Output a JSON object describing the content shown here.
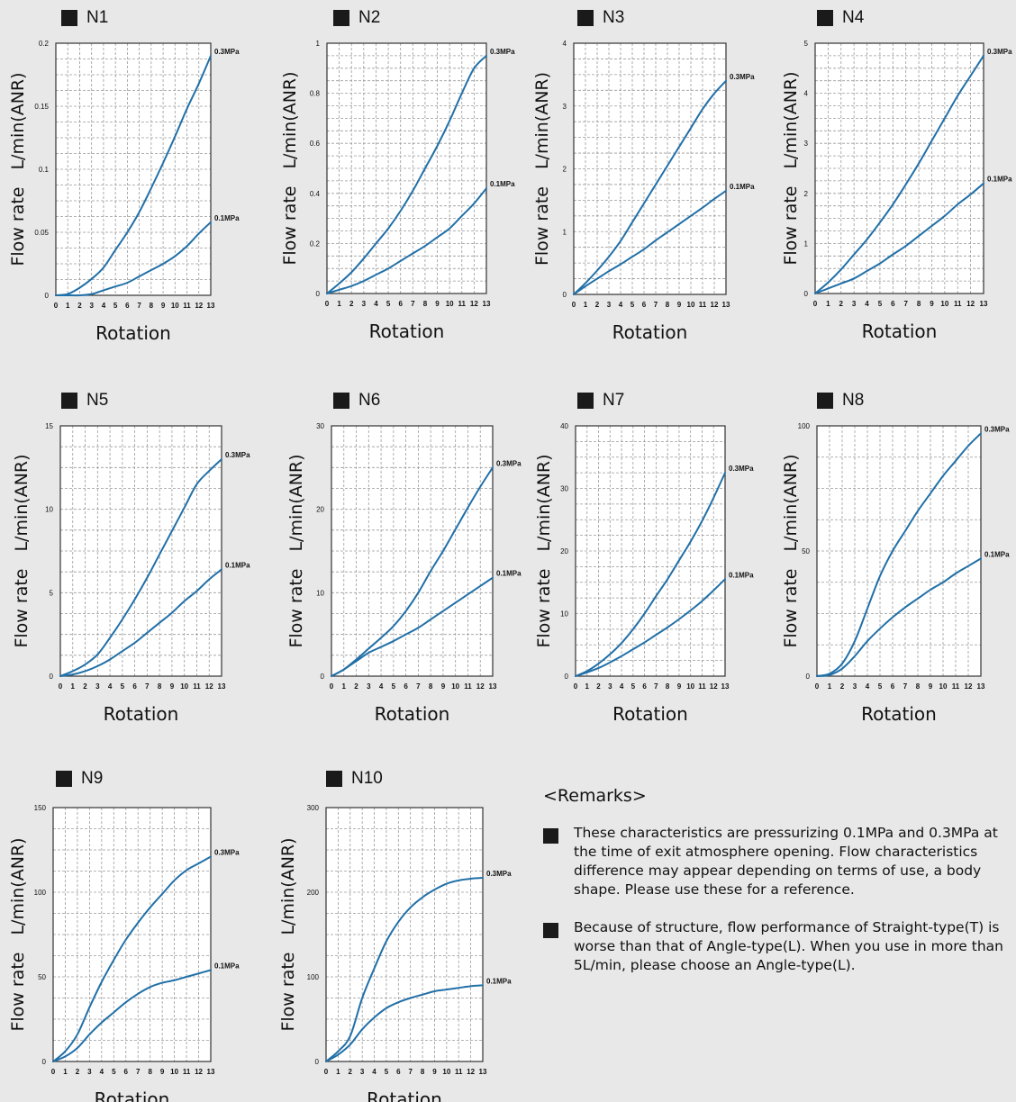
{
  "chart_data": [
    {
      "type": "line",
      "title": "N1",
      "xlabel": "Rotation",
      "ylabel": "Flow rate L/min(ANR)",
      "xlim": [
        0,
        13
      ],
      "ylim": [
        0,
        0.2
      ],
      "y_ticks": [
        0,
        0.05,
        0.1,
        0.15,
        0.2
      ],
      "y_tick_labels": [
        "0",
        "0.05",
        "0.1",
        "0.15",
        "0.2"
      ],
      "series": [
        {
          "name": "0.3MPa",
          "x": [
            0,
            1,
            2,
            3,
            4,
            5,
            6,
            7,
            8,
            9,
            10,
            11,
            12,
            13
          ],
          "y": [
            0,
            0.001,
            0.006,
            0.013,
            0.022,
            0.036,
            0.05,
            0.066,
            0.085,
            0.105,
            0.126,
            0.148,
            0.168,
            0.19
          ]
        },
        {
          "name": "0.1MPa",
          "x": [
            0,
            1,
            2,
            3,
            4,
            5,
            6,
            7,
            8,
            9,
            10,
            11,
            12,
            13
          ],
          "y": [
            0,
            0,
            0,
            0.001,
            0.004,
            0.007,
            0.01,
            0.015,
            0.02,
            0.025,
            0.031,
            0.039,
            0.049,
            0.058
          ]
        }
      ]
    },
    {
      "type": "line",
      "title": "N2",
      "xlabel": "Rotation",
      "ylabel": "Flow rate L/min(ANR)",
      "xlim": [
        0,
        13
      ],
      "ylim": [
        0,
        1
      ],
      "y_ticks": [
        0,
        0.2,
        0.4,
        0.6,
        0.8,
        1
      ],
      "y_tick_labels": [
        "0",
        "0.2",
        "0.4",
        "0.6",
        "0.8",
        "1"
      ],
      "series": [
        {
          "name": "0.3MPa",
          "x": [
            0,
            1,
            2,
            3,
            4,
            5,
            6,
            7,
            8,
            9,
            10,
            11,
            12,
            13
          ],
          "y": [
            0,
            0.04,
            0.085,
            0.14,
            0.2,
            0.26,
            0.33,
            0.41,
            0.5,
            0.59,
            0.69,
            0.8,
            0.9,
            0.95
          ]
        },
        {
          "name": "0.1MPa",
          "x": [
            0,
            1,
            2,
            3,
            4,
            5,
            6,
            7,
            8,
            9,
            10,
            11,
            12,
            13
          ],
          "y": [
            0,
            0.015,
            0.03,
            0.05,
            0.075,
            0.1,
            0.13,
            0.16,
            0.19,
            0.225,
            0.26,
            0.31,
            0.36,
            0.42
          ]
        }
      ]
    },
    {
      "type": "line",
      "title": "N3",
      "xlabel": "Rotation",
      "ylabel": "Flow rate L/min(ANR)",
      "xlim": [
        0,
        13
      ],
      "ylim": [
        0,
        4
      ],
      "y_ticks": [
        0,
        1,
        2,
        3,
        4
      ],
      "y_tick_labels": [
        "0",
        "1",
        "2",
        "3",
        "4"
      ],
      "series": [
        {
          "name": "0.3MPa",
          "x": [
            0,
            1,
            2,
            3,
            4,
            5,
            6,
            7,
            8,
            9,
            10,
            11,
            12,
            13
          ],
          "y": [
            0,
            0.18,
            0.38,
            0.6,
            0.85,
            1.15,
            1.45,
            1.75,
            2.05,
            2.35,
            2.65,
            2.95,
            3.2,
            3.4
          ]
        },
        {
          "name": "0.1MPa",
          "x": [
            0,
            1,
            2,
            3,
            4,
            5,
            6,
            7,
            8,
            9,
            10,
            11,
            12,
            13
          ],
          "y": [
            0,
            0.13,
            0.25,
            0.37,
            0.48,
            0.6,
            0.72,
            0.86,
            0.99,
            1.12,
            1.25,
            1.38,
            1.52,
            1.65
          ]
        }
      ]
    },
    {
      "type": "line",
      "title": "N4",
      "xlabel": "Rotation",
      "ylabel": "Flow rate L/min(ANR)",
      "xlim": [
        0,
        13
      ],
      "ylim": [
        0,
        5
      ],
      "y_ticks": [
        0,
        1,
        2,
        3,
        4,
        5
      ],
      "y_tick_labels": [
        "0",
        "1",
        "2",
        "3",
        "4",
        "5"
      ],
      "series": [
        {
          "name": "0.3MPa",
          "x": [
            0,
            1,
            2,
            3,
            4,
            5,
            6,
            7,
            8,
            9,
            10,
            11,
            12,
            13
          ],
          "y": [
            0,
            0.22,
            0.48,
            0.78,
            1.08,
            1.42,
            1.78,
            2.18,
            2.6,
            3.05,
            3.5,
            3.95,
            4.35,
            4.75
          ]
        },
        {
          "name": "0.1MPa",
          "x": [
            0,
            1,
            2,
            3,
            4,
            5,
            6,
            7,
            8,
            9,
            10,
            11,
            12,
            13
          ],
          "y": [
            0,
            0.1,
            0.2,
            0.3,
            0.45,
            0.6,
            0.78,
            0.95,
            1.15,
            1.35,
            1.55,
            1.78,
            1.98,
            2.2
          ]
        }
      ]
    },
    {
      "type": "line",
      "title": "N5",
      "xlabel": "Rotation",
      "ylabel": "Flow rate L/min(ANR)",
      "xlim": [
        0,
        13
      ],
      "ylim": [
        0,
        15
      ],
      "y_ticks": [
        0,
        5,
        10,
        15
      ],
      "y_tick_labels": [
        "0",
        "5",
        "10",
        "15"
      ],
      "series": [
        {
          "name": "0.3MPa",
          "x": [
            0,
            1,
            2,
            3,
            4,
            5,
            6,
            7,
            8,
            9,
            10,
            11,
            12,
            13
          ],
          "y": [
            0,
            0.3,
            0.7,
            1.3,
            2.3,
            3.4,
            4.6,
            5.9,
            7.3,
            8.7,
            10.1,
            11.5,
            12.3,
            13
          ]
        },
        {
          "name": "0.1MPa",
          "x": [
            0,
            1,
            2,
            3,
            4,
            5,
            6,
            7,
            8,
            9,
            10,
            11,
            12,
            13
          ],
          "y": [
            0,
            0.1,
            0.3,
            0.6,
            1.0,
            1.5,
            2.0,
            2.6,
            3.2,
            3.8,
            4.5,
            5.1,
            5.8,
            6.4
          ]
        }
      ]
    },
    {
      "type": "line",
      "title": "N6",
      "xlabel": "Rotation",
      "ylabel": "Flow rate L/min(ANR)",
      "xlim": [
        0,
        13
      ],
      "ylim": [
        0,
        30
      ],
      "y_ticks": [
        0,
        10,
        20,
        30
      ],
      "y_tick_labels": [
        "0",
        "10",
        "20",
        "30"
      ],
      "series": [
        {
          "name": "0.3MPa",
          "x": [
            0,
            1,
            2,
            3,
            4,
            5,
            6,
            7,
            8,
            9,
            10,
            11,
            12,
            13
          ],
          "y": [
            0,
            0.8,
            2.0,
            3.3,
            4.6,
            6.0,
            7.8,
            10.0,
            12.6,
            15.0,
            17.6,
            20.2,
            22.7,
            25
          ]
        },
        {
          "name": "0.1MPa",
          "x": [
            0,
            1,
            2,
            3,
            4,
            5,
            6,
            7,
            8,
            9,
            10,
            11,
            12,
            13
          ],
          "y": [
            0,
            0.8,
            1.8,
            2.8,
            3.5,
            4.2,
            5.0,
            5.8,
            6.8,
            7.8,
            8.8,
            9.8,
            10.8,
            11.8
          ]
        }
      ]
    },
    {
      "type": "line",
      "title": "N7",
      "xlabel": "Rotation",
      "ylabel": "Flow rate L/min(ANR)",
      "xlim": [
        0,
        13
      ],
      "ylim": [
        0,
        40
      ],
      "y_ticks": [
        0,
        10,
        20,
        30,
        40
      ],
      "y_tick_labels": [
        "0",
        "10",
        "20",
        "30",
        "40"
      ],
      "series": [
        {
          "name": "0.3MPa",
          "x": [
            0,
            1,
            2,
            3,
            4,
            5,
            6,
            7,
            8,
            9,
            10,
            11,
            12,
            13
          ],
          "y": [
            0,
            0.8,
            2.0,
            3.5,
            5.3,
            7.5,
            10,
            12.8,
            15.5,
            18.5,
            21.5,
            24.8,
            28.5,
            32.5
          ]
        },
        {
          "name": "0.1MPa",
          "x": [
            0,
            1,
            2,
            3,
            4,
            5,
            6,
            7,
            8,
            9,
            10,
            11,
            12,
            13
          ],
          "y": [
            0,
            0.6,
            1.3,
            2.2,
            3.2,
            4.3,
            5.4,
            6.6,
            7.8,
            9.1,
            10.5,
            12.0,
            13.7,
            15.5
          ]
        }
      ]
    },
    {
      "type": "line",
      "title": "N8",
      "xlabel": "Rotation",
      "ylabel": "Flow rate L/min(ANR)",
      "xlim": [
        0,
        13
      ],
      "ylim": [
        0,
        100
      ],
      "y_ticks": [
        0,
        50,
        100
      ],
      "y_tick_labels": [
        "0",
        "50",
        "100"
      ],
      "series": [
        {
          "name": "0.3MPa",
          "x": [
            0,
            1,
            2,
            3,
            4,
            5,
            6,
            7,
            8,
            9,
            10,
            11,
            12,
            13
          ],
          "y": [
            0,
            1,
            5,
            14,
            27,
            40,
            50,
            58,
            66,
            73,
            80,
            86,
            92,
            97
          ]
        },
        {
          "name": "0.1MPa",
          "x": [
            0,
            1,
            2,
            3,
            4,
            5,
            6,
            7,
            8,
            9,
            10,
            11,
            12,
            13
          ],
          "y": [
            0,
            0.5,
            3,
            8,
            14,
            19,
            23.5,
            27.5,
            31,
            34.5,
            37.5,
            41,
            44,
            47
          ]
        }
      ]
    },
    {
      "type": "line",
      "title": "N9",
      "xlabel": "Rotation",
      "ylabel": "Flow rate L/min(ANR)",
      "xlim": [
        0,
        13
      ],
      "ylim": [
        0,
        150
      ],
      "y_ticks": [
        0,
        50,
        100,
        150
      ],
      "y_tick_labels": [
        "0",
        "50",
        "100",
        "150"
      ],
      "series": [
        {
          "name": "0.3MPa",
          "x": [
            0,
            1,
            2,
            3,
            4,
            5,
            6,
            7,
            8,
            9,
            10,
            11,
            12,
            13
          ],
          "y": [
            0,
            6,
            16,
            32,
            47,
            60,
            72,
            82,
            91,
            99,
            107,
            113,
            117,
            121
          ]
        },
        {
          "name": "0.1MPa",
          "x": [
            0,
            1,
            2,
            3,
            4,
            5,
            6,
            7,
            8,
            9,
            10,
            11,
            12,
            13
          ],
          "y": [
            0,
            3,
            8,
            16,
            23,
            29,
            35,
            40,
            44,
            46.5,
            48,
            50,
            52,
            54
          ]
        }
      ]
    },
    {
      "type": "line",
      "title": "N10",
      "xlabel": "Rotation",
      "ylabel": "Flow rate L/min(ANR)",
      "xlim": [
        0,
        13
      ],
      "ylim": [
        0,
        300
      ],
      "y_ticks": [
        0,
        100,
        200,
        300
      ],
      "y_tick_labels": [
        "0",
        "100",
        "200",
        "300"
      ],
      "series": [
        {
          "name": "0.3MPa",
          "x": [
            0,
            1,
            2,
            3,
            4,
            5,
            6,
            7,
            8,
            9,
            10,
            11,
            12,
            13
          ],
          "y": [
            0,
            12,
            30,
            75,
            110,
            142,
            165,
            182,
            194,
            203,
            210,
            214,
            216,
            217
          ]
        },
        {
          "name": "0.1MPa",
          "x": [
            0,
            1,
            2,
            3,
            4,
            5,
            6,
            7,
            8,
            9,
            10,
            11,
            12,
            13
          ],
          "y": [
            0,
            8,
            20,
            38,
            52,
            63,
            70,
            75,
            79,
            83,
            85,
            87,
            89,
            90
          ]
        }
      ]
    }
  ],
  "remarks": {
    "heading": "<Remarks>",
    "items": [
      "These characteristics are pressurizing 0.1MPa and 0.3MPa at the time of exit atmosphere opening. Flow characteristics difference may appear depending on terms of use, a body shape. Please use these for a reference.",
      "Because of structure, flow performance of Straight-type(T) is worse than that of Angle-type(L). When you use in more than 5L/min, please choose an Angle-type(L)."
    ]
  },
  "colors": {
    "line": "#2170a8",
    "grid": "#9a9a9a",
    "background": "#e8e8e8",
    "plot_bg": "#ffffff"
  }
}
